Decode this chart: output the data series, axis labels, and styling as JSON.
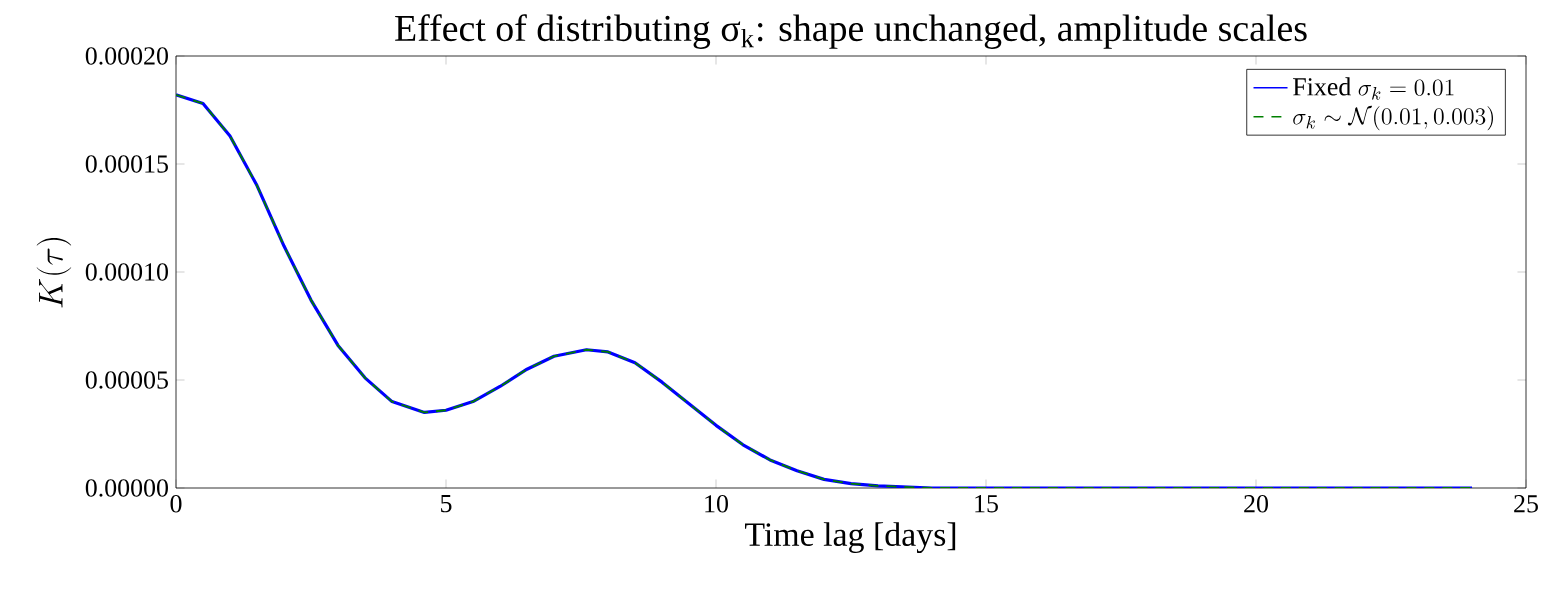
{
  "chart_data": {
    "type": "line",
    "title": "Effect of distributing σ$_{k}$: shape unchanged, amplitude scales",
    "xlabel": "Time lag [days]",
    "ylabel": "K(\\tau)",
    "x": [
      0,
      0.5,
      1,
      1.5,
      2,
      2.5,
      3,
      3.5,
      4,
      4.6,
      5,
      5.5,
      6,
      6.5,
      7,
      7.6,
      8,
      8.5,
      9,
      9.5,
      10,
      10.5,
      11,
      11.5,
      12,
      12.5,
      13,
      14,
      16,
      20,
      24
    ],
    "series": [
      {
        "name": "\\mathrm{Fixed}\\ \\sigma_k = 0.01",
        "color": "#0000ff",
        "line_style": "solid",
        "values": [
          0.000182,
          0.000178,
          0.000163,
          0.00014,
          0.000112,
          8.7e-05,
          6.6e-05,
          5.1e-05,
          4e-05,
          3.5e-05,
          3.6e-05,
          4e-05,
          4.7e-05,
          5.5e-05,
          6.1e-05,
          6.4e-05,
          6.3e-05,
          5.8e-05,
          4.9e-05,
          3.9e-05,
          2.9e-05,
          2e-05,
          1.3e-05,
          8e-06,
          4e-06,
          2e-06,
          1e-06,
          0,
          0,
          0,
          0
        ]
      },
      {
        "name": "\\sigma_k \\sim \\mathcal{N}(0.01, 0.003)",
        "color": "#008000",
        "line_style": "dashed",
        "values": [
          0.000182,
          0.000178,
          0.000163,
          0.00014,
          0.000112,
          8.7e-05,
          6.6e-05,
          5.1e-05,
          4e-05,
          3.5e-05,
          3.6e-05,
          4e-05,
          4.7e-05,
          5.5e-05,
          6.1e-05,
          6.4e-05,
          6.3e-05,
          5.8e-05,
          4.9e-05,
          3.9e-05,
          2.9e-05,
          2e-05,
          1.3e-05,
          8e-06,
          4e-06,
          2e-06,
          1e-06,
          0,
          0,
          0,
          0
        ]
      }
    ],
    "xlim": [
      0,
      25
    ],
    "xticks": [
      0,
      5,
      10,
      15,
      20,
      25
    ],
    "ylim": [
      0,
      0.0002
    ],
    "yticks": [
      {
        "value": 0,
        "label": "0.00000"
      },
      {
        "value": 5e-05,
        "label": "0.00005"
      },
      {
        "value": 0.0001,
        "label": "0.00010"
      },
      {
        "value": 0.00015,
        "label": "0.00015"
      },
      {
        "value": 0.0002,
        "label": "0.00020"
      }
    ],
    "legend": "top right",
    "grid": false,
    "marker": "none"
  }
}
